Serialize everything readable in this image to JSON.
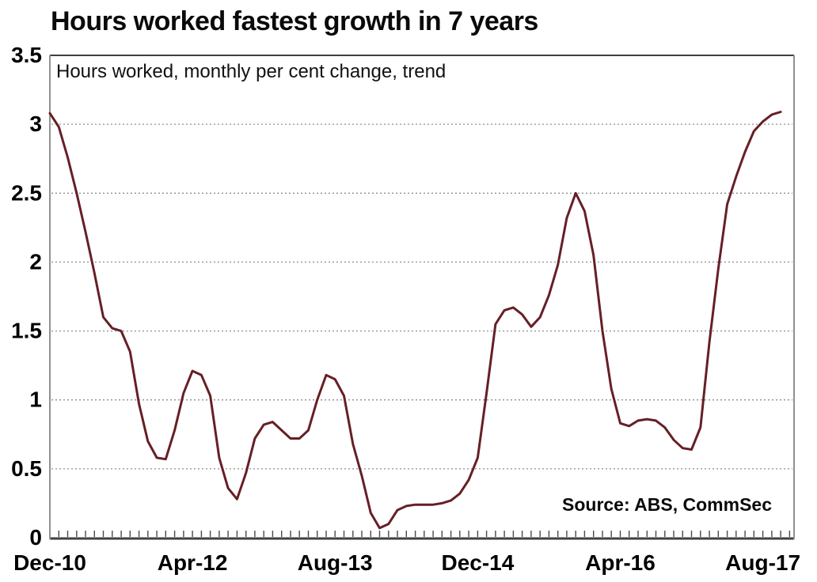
{
  "chart_data": {
    "type": "line",
    "title": "Hours worked fastest growth in 7 years",
    "subtitle": "Hours worked, monthly per cent change, trend",
    "source": "Source: ABS, CommSec",
    "xlabel": "",
    "ylabel": "",
    "ylim": [
      0,
      3.5
    ],
    "y_ticks": [
      0,
      0.5,
      1,
      1.5,
      2,
      2.5,
      3,
      3.5
    ],
    "y_tick_labels": [
      "0",
      "0.5",
      "1",
      "1.5",
      "2",
      "2.5",
      "3",
      "3.5"
    ],
    "grid": "horizontal dotted lines at every 0.5",
    "legend_position": "none",
    "x_unit": "month",
    "axis_span_months": 83.5,
    "minor_ticks": "monthly along bottom axis",
    "x_tick_labels": [
      {
        "label": "Dec-10",
        "month": 0
      },
      {
        "label": "Apr-12",
        "month": 16
      },
      {
        "label": "Aug-13",
        "month": 32
      },
      {
        "label": "Dec-14",
        "month": 48
      },
      {
        "label": "Apr-16",
        "month": 64
      },
      {
        "label": "Aug-17",
        "month": 80
      }
    ],
    "series": [
      {
        "name": "Hours worked, monthly per cent change, trend",
        "color": "#661f26",
        "start_month": 0,
        "start_label": "Dec-10",
        "end_label": "Oct-17",
        "values": [
          3.08,
          2.98,
          2.76,
          2.5,
          2.22,
          1.92,
          1.6,
          1.52,
          1.5,
          1.35,
          0.97,
          0.7,
          0.58,
          0.57,
          0.78,
          1.05,
          1.21,
          1.18,
          1.03,
          0.58,
          0.36,
          0.28,
          0.47,
          0.72,
          0.82,
          0.84,
          0.78,
          0.72,
          0.72,
          0.78,
          1.0,
          1.18,
          1.15,
          1.03,
          0.68,
          0.45,
          0.18,
          0.07,
          0.1,
          0.2,
          0.23,
          0.24,
          0.24,
          0.24,
          0.25,
          0.27,
          0.32,
          0.42,
          0.58,
          1.05,
          1.55,
          1.65,
          1.67,
          1.62,
          1.53,
          1.6,
          1.76,
          1.98,
          2.32,
          2.5,
          2.37,
          2.05,
          1.5,
          1.08,
          0.83,
          0.81,
          0.85,
          0.86,
          0.85,
          0.8,
          0.71,
          0.65,
          0.64,
          0.8,
          1.42,
          1.95,
          2.42,
          2.62,
          2.8,
          2.95,
          3.02,
          3.07,
          3.09
        ]
      }
    ]
  },
  "colors": {
    "line": "#661f26",
    "grid": "#8f8f8f",
    "axis_dark": "#3f3f3f",
    "axis_light": "#919191",
    "tick": "#4a4a4a",
    "text": "#000000",
    "background": "#ffffff"
  }
}
